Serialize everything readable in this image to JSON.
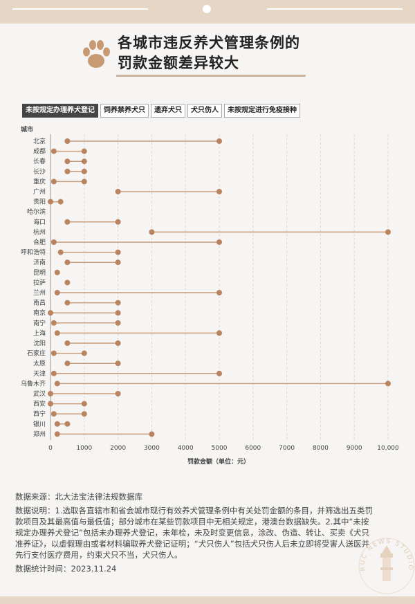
{
  "header": {
    "title_line1": "各城市违反养犬管理条例的",
    "title_line2": "罚款金额差异较大"
  },
  "tabs": [
    {
      "label": "未按规定办理养犬登记",
      "active": true
    },
    {
      "label": "饲养禁养犬只",
      "active": false
    },
    {
      "label": "遗弃犬只",
      "active": false
    },
    {
      "label": "犬只伤人",
      "active": false
    },
    {
      "label": "未按规定进行免疫接种",
      "active": false
    }
  ],
  "chart_data": {
    "type": "dumbbell",
    "ylabel": "城市",
    "xlabel": "罚款金额（单位：元）",
    "xlim": [
      0,
      10000
    ],
    "xticks": [
      0,
      1000,
      2000,
      3000,
      4000,
      5000,
      6000,
      7000,
      8000,
      9000,
      10000
    ],
    "xtick_labels": [
      "0",
      "1000",
      "2000",
      "3000",
      "4000",
      "5000",
      "6000",
      "7000",
      "8000",
      "9000",
      "10,000"
    ],
    "grid": "vertical-dashed",
    "colors": {
      "dot": "#b9845f",
      "line": "#c99b7b"
    },
    "cities": [
      "北京",
      "成都",
      "长春",
      "长沙",
      "重庆",
      "广州",
      "贵阳",
      "哈尔滨",
      "海口",
      "杭州",
      "合肥",
      "呼和浩特",
      "济南",
      "昆明",
      "拉萨",
      "兰州",
      "南昌",
      "南京",
      "南宁",
      "上海",
      "沈阳",
      "石家庄",
      "太原",
      "天津",
      "乌鲁木齐",
      "武汉",
      "西安",
      "西宁",
      "银川",
      "郑州"
    ],
    "min": [
      500,
      100,
      500,
      500,
      100,
      2000,
      0,
      null,
      500,
      3000,
      100,
      300,
      500,
      200,
      500,
      200,
      500,
      0,
      100,
      200,
      500,
      100,
      500,
      100,
      200,
      0,
      0,
      100,
      200,
      200
    ],
    "max": [
      5000,
      1000,
      1000,
      1000,
      1000,
      5000,
      300,
      null,
      2000,
      10000,
      5000,
      2000,
      2000,
      null,
      null,
      5000,
      2000,
      2000,
      2000,
      5000,
      2000,
      1000,
      2000,
      5000,
      10000,
      2000,
      1000,
      1000,
      500,
      3000
    ]
  },
  "notes": {
    "source": "数据来源：北大法宝法律法规数据库",
    "description": "数据说明：1.选取各直辖市和省会城市现行有效养犬管理条例中有关处罚金额的条目，并筛选出五类罚款项目及其最高值与最低值；部分城市在某些罚款项目中无相关规定，港澳台数据缺失。2.其中“未按规定办理养犬登记”包括未办理养犬登记，未年检，未及时变更信息，涂改、伪造、转让、买卖《犬只准养证》，以虚假理由或者材料骗取养犬登记证明；“犬只伤人”包括犬只伤人后未立即将受害人送医并先行支付医疗费用，约束犬只不当，犬只伤人。",
    "stat_time": "数据统计时间：2023.11.24"
  },
  "stamp_text": "RUC NEWS STUDIO"
}
